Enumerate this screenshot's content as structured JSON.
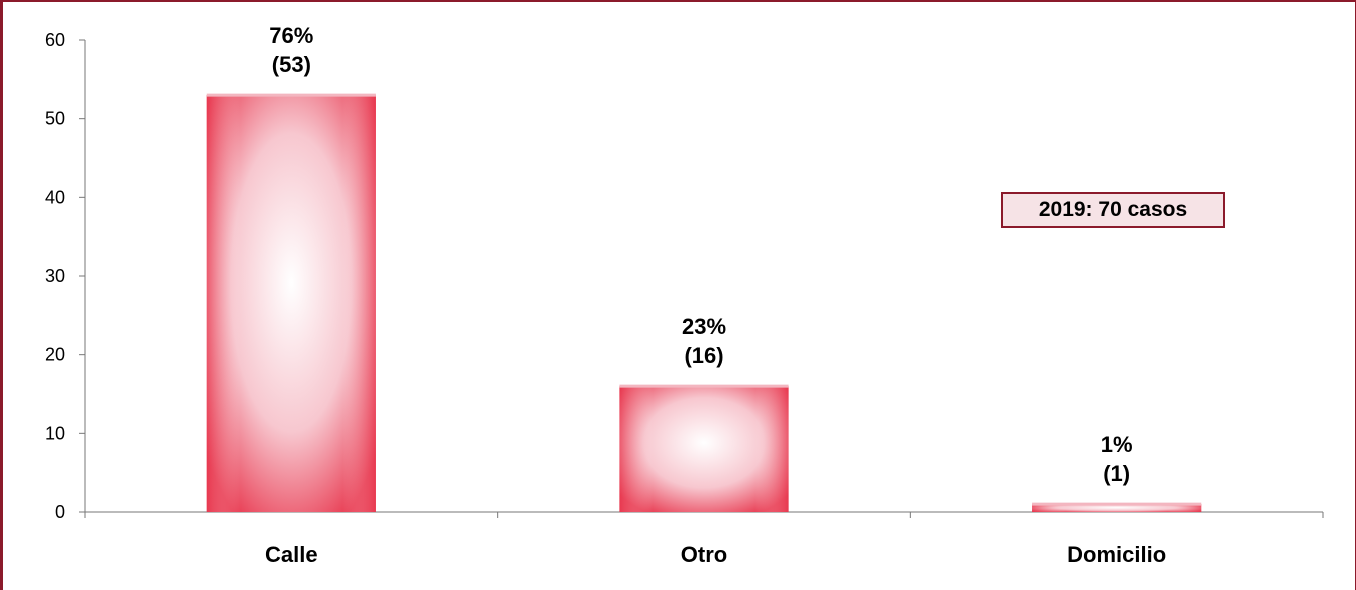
{
  "chart_data": {
    "type": "bar",
    "categories": [
      "Calle",
      "Otro",
      "Domicilio"
    ],
    "values": [
      53,
      16,
      1
    ],
    "labels": [
      {
        "percent": "76%",
        "count": "(53)"
      },
      {
        "percent": "23%",
        "count": "(16)"
      },
      {
        "percent": "1%",
        "count": "(1)"
      }
    ],
    "title": "",
    "xlabel": "",
    "ylabel": "",
    "ylim": [
      0,
      60
    ],
    "yticks": [
      0,
      10,
      20,
      30,
      40,
      50,
      60
    ],
    "grid": false,
    "legend": "none",
    "annotation": "2019: 70 casos",
    "colors": {
      "bar": "#e8384f",
      "bar_light": "#ffffff",
      "frame": "#8b1a2b",
      "annotation_bg": "#f6e3e6"
    }
  }
}
